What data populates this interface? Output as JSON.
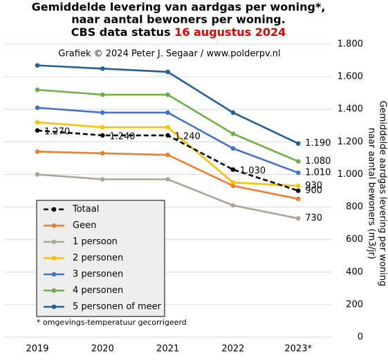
{
  "chart_data": {
    "type": "line",
    "title": {
      "lines": [
        "Gemiddelde levering van aardgas per woning*,",
        "naar aantal bewoners per woning."
      ],
      "status_label": "CBS data status",
      "status_date": "16 augustus 2024"
    },
    "subtitle": "Grafiek © 2024 Peter J. Segaar / www.polderpv.nl",
    "y_label": [
      "Gemiddelde  aardgas levering per woning",
      "naar aantal bewoners (m3/jr)"
    ],
    "footnote": "* omgevings-temperatuur gecorrigeerd",
    "categories": [
      "2019",
      "2020",
      "2021",
      "2022",
      "2023*"
    ],
    "series": [
      {
        "name": "Totaal",
        "color": "#000000",
        "dashed": true,
        "values": [
          1270,
          1240,
          1240,
          1030,
          900
        ],
        "value_labels": [
          "1.270",
          "1.240",
          "1.240",
          "1.030",
          "900"
        ]
      },
      {
        "name": "Geen",
        "color": "#ed7d31",
        "values": [
          1140,
          1130,
          1120,
          930,
          850
        ]
      },
      {
        "name": "1 persoon",
        "color": "#aaa598",
        "values": [
          1000,
          970,
          970,
          810,
          730
        ],
        "value_labels": [
          null,
          null,
          null,
          null,
          "730"
        ]
      },
      {
        "name": "2 personen",
        "color": "#ffc000",
        "values": [
          1320,
          1290,
          1290,
          950,
          930
        ],
        "value_labels": [
          null,
          null,
          null,
          null,
          "930"
        ]
      },
      {
        "name": "3 personen",
        "color": "#4472c4",
        "values": [
          1410,
          1380,
          1380,
          1160,
          1010
        ],
        "value_labels": [
          null,
          null,
          null,
          null,
          "1.010"
        ]
      },
      {
        "name": "4 personen",
        "color": "#70ad47",
        "values": [
          1520,
          1490,
          1490,
          1250,
          1080
        ],
        "value_labels": [
          null,
          null,
          null,
          null,
          "1.080"
        ]
      },
      {
        "name": "5 personen of meer",
        "color": "#255e91",
        "values": [
          1670,
          1650,
          1630,
          1380,
          1190
        ],
        "value_labels": [
          null,
          null,
          null,
          null,
          "1.190"
        ]
      }
    ],
    "ylim": [
      0,
      1800
    ],
    "yticks": [
      0,
      200,
      400,
      600,
      800,
      {
        "value": 1000,
        "label": "1.000"
      },
      {
        "value": 1200,
        "label": "1.200"
      },
      {
        "value": 1400,
        "label": "1.400"
      },
      {
        "value": 1600,
        "label": "1.600"
      },
      {
        "value": 1800,
        "label": "1.800"
      }
    ],
    "grid": true,
    "y_axis_side": "right",
    "legend": "lower left"
  }
}
